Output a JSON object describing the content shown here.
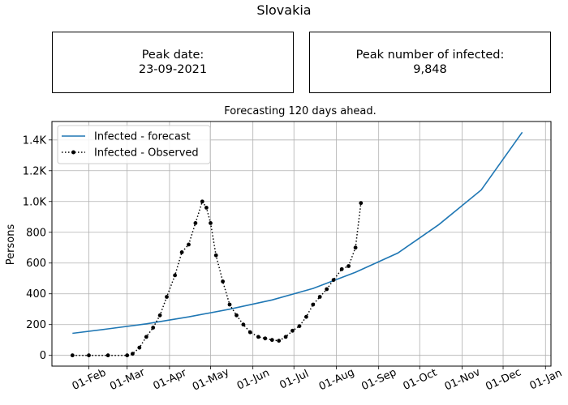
{
  "suptitle": "Slovakia",
  "peak_date": {
    "label": "Peak date:",
    "value": "23-09-2021"
  },
  "peak_infected": {
    "label": "Peak number of infected:",
    "value": "9,848"
  },
  "chart_data": {
    "type": "line",
    "title": "Forecasting 120 days ahead.",
    "xlabel": "",
    "ylabel": "Persons",
    "x_ticks": [
      "01-Feb",
      "01-Mar",
      "01-Apr",
      "01-May",
      "01-Jun",
      "01-Jul",
      "01-Aug",
      "01-Sep",
      "01-Oct",
      "01-Nov",
      "01-Dec",
      "01-Jan"
    ],
    "y_ticks": [
      {
        "value": 0,
        "label": "0"
      },
      {
        "value": 200,
        "label": "200"
      },
      {
        "value": 400,
        "label": "400"
      },
      {
        "value": 600,
        "label": "600"
      },
      {
        "value": 800,
        "label": "800"
      },
      {
        "value": 1000,
        "label": "1.0K"
      },
      {
        "value": 1200,
        "label": "1.2K"
      },
      {
        "value": 1400,
        "label": "1.4K"
      }
    ],
    "xlim": [
      "2021-01-05",
      "2022-01-05"
    ],
    "ylim": [
      -70,
      1520
    ],
    "grid": true,
    "legend_position": "upper-left",
    "series": [
      {
        "name": "Infected - forecast",
        "style": "solid-line",
        "color": "#1f77b4",
        "x": [
          "2021-01-20",
          "2021-02-15",
          "2021-03-15",
          "2021-04-15",
          "2021-05-15",
          "2021-06-15",
          "2021-07-15",
          "2021-08-15",
          "2021-09-15",
          "2021-10-15",
          "2021-11-15",
          "2021-12-15"
        ],
        "y": [
          143,
          172,
          205,
          250,
          300,
          360,
          435,
          540,
          665,
          850,
          1075,
          1450
        ]
      },
      {
        "name": "Infected - Observed",
        "style": "dotted-line-with-markers",
        "color": "#000000",
        "x": [
          "2021-01-20",
          "2021-02-01",
          "2021-02-15",
          "2021-03-01",
          "2021-03-05",
          "2021-03-10",
          "2021-03-15",
          "2021-03-20",
          "2021-03-25",
          "2021-03-30",
          "2021-04-05",
          "2021-04-10",
          "2021-04-15",
          "2021-04-20",
          "2021-04-25",
          "2021-04-28",
          "2021-05-01",
          "2021-05-05",
          "2021-05-10",
          "2021-05-15",
          "2021-05-20",
          "2021-05-25",
          "2021-05-30",
          "2021-06-05",
          "2021-06-10",
          "2021-06-15",
          "2021-06-20",
          "2021-06-25",
          "2021-06-30",
          "2021-07-05",
          "2021-07-10",
          "2021-07-15",
          "2021-07-20",
          "2021-07-25",
          "2021-07-30",
          "2021-08-05",
          "2021-08-10",
          "2021-08-15",
          "2021-08-19"
        ],
        "y": [
          0,
          0,
          0,
          0,
          10,
          50,
          120,
          180,
          260,
          380,
          520,
          670,
          720,
          860,
          1000,
          960,
          860,
          650,
          480,
          330,
          260,
          200,
          150,
          120,
          110,
          100,
          95,
          120,
          160,
          190,
          250,
          330,
          380,
          430,
          490,
          560,
          580,
          700,
          990
        ]
      }
    ]
  }
}
